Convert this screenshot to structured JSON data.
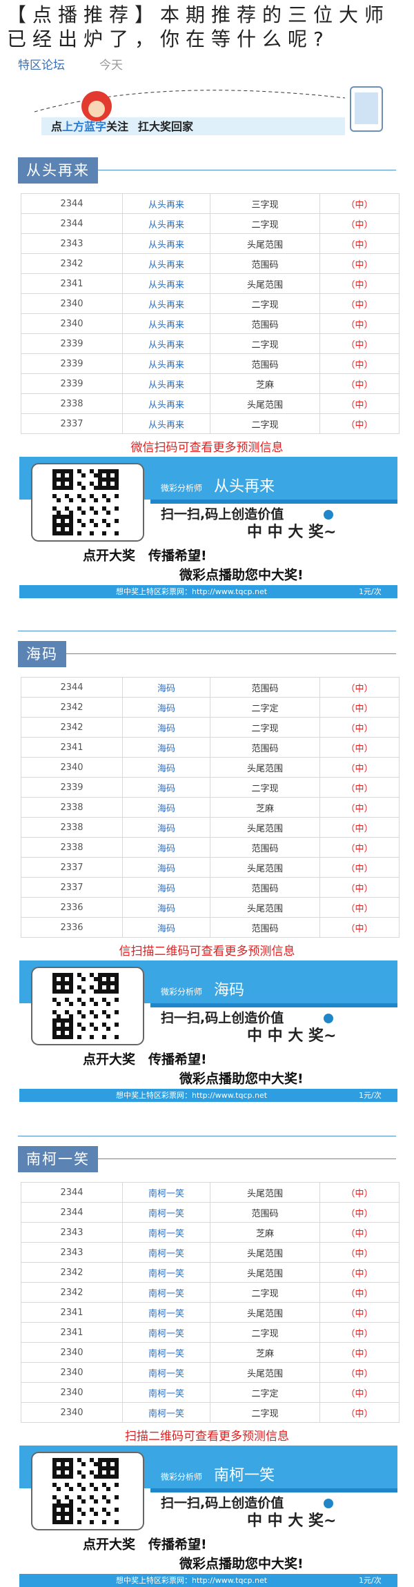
{
  "header": {
    "title": "【点播推荐】本期推荐的三位大师已经出炉了，你在等什么呢?",
    "source": "特区论坛",
    "time": "今天"
  },
  "top_banner": {
    "parts": [
      "点",
      "上方蓝字",
      "关注",
      "扛大奖回家"
    ]
  },
  "sections": [
    {
      "title": "从头再来",
      "rows": [
        [
          "2344",
          "从头再来",
          "三字现",
          "（中）"
        ],
        [
          "2344",
          "从头再来",
          "二字现",
          "（中）"
        ],
        [
          "2343",
          "从头再来",
          "头尾范围",
          "（中）"
        ],
        [
          "2342",
          "从头再来",
          "范围码",
          "（中）"
        ],
        [
          "2341",
          "从头再来",
          "头尾范围",
          "（中）"
        ],
        [
          "2340",
          "从头再来",
          "二字现",
          "（中）"
        ],
        [
          "2340",
          "从头再来",
          "范围码",
          "（中）"
        ],
        [
          "2339",
          "从头再来",
          "二字现",
          "（中）"
        ],
        [
          "2339",
          "从头再来",
          "范围码",
          "（中）"
        ],
        [
          "2339",
          "从头再来",
          "芝麻",
          "（中）"
        ],
        [
          "2338",
          "从头再来",
          "头尾范围",
          "（中）"
        ],
        [
          "2337",
          "从头再来",
          "二字现",
          "（中）"
        ]
      ],
      "note": "微信扫码可查看更多预测信息",
      "banner": {
        "analyst": "微彩分析师",
        "name": "从头再来",
        "slogan": "扫一扫,码上创造价值",
        "win": "中 中 大 奖~",
        "line1": "点开大奖　传播希望!",
        "line2": "微彩点播助您中大奖!",
        "footer": "想中奖上特区彩票网：http://www.tqcp.net",
        "price": "1元/次"
      }
    },
    {
      "title": "海码",
      "rows": [
        [
          "2344",
          "海码",
          "范围码",
          "（中）"
        ],
        [
          "2342",
          "海码",
          "二字定",
          "（中）"
        ],
        [
          "2342",
          "海码",
          "二字现",
          "（中）"
        ],
        [
          "2341",
          "海码",
          "范围码",
          "（中）"
        ],
        [
          "2340",
          "海码",
          "头尾范围",
          "（中）"
        ],
        [
          "2339",
          "海码",
          "二字现",
          "（中）"
        ],
        [
          "2338",
          "海码",
          "芝麻",
          "（中）"
        ],
        [
          "2338",
          "海码",
          "头尾范围",
          "（中）"
        ],
        [
          "2338",
          "海码",
          "范围码",
          "（中）"
        ],
        [
          "2337",
          "海码",
          "头尾范围",
          "（中）"
        ],
        [
          "2337",
          "海码",
          "范围码",
          "（中）"
        ],
        [
          "2336",
          "海码",
          "头尾范围",
          "（中）"
        ],
        [
          "2336",
          "海码",
          "范围码",
          "（中）"
        ]
      ],
      "note": "信扫描二维码可查看更多预测信息",
      "banner": {
        "analyst": "微彩分析师",
        "name": "海码",
        "slogan": "扫一扫,码上创造价值",
        "win": "中 中 大 奖~",
        "line1": "点开大奖　传播希望!",
        "line2": "微彩点播助您中大奖!",
        "footer": "想中奖上特区彩票网：http://www.tqcp.net",
        "price": "1元/次"
      }
    },
    {
      "title": "南柯一笑",
      "rows": [
        [
          "2344",
          "南柯一笑",
          "头尾范围",
          "（中）"
        ],
        [
          "2344",
          "南柯一笑",
          "范围码",
          "（中）"
        ],
        [
          "2343",
          "南柯一笑",
          "芝麻",
          "（中）"
        ],
        [
          "2343",
          "南柯一笑",
          "头尾范围",
          "（中）"
        ],
        [
          "2342",
          "南柯一笑",
          "头尾范围",
          "（中）"
        ],
        [
          "2342",
          "南柯一笑",
          "二字现",
          "（中）"
        ],
        [
          "2341",
          "南柯一笑",
          "头尾范围",
          "（中）"
        ],
        [
          "2341",
          "南柯一笑",
          "二字现",
          "（中）"
        ],
        [
          "2340",
          "南柯一笑",
          "芝麻",
          "（中）"
        ],
        [
          "2340",
          "南柯一笑",
          "头尾范围",
          "（中）"
        ],
        [
          "2340",
          "南柯一笑",
          "二字定",
          "（中）"
        ],
        [
          "2340",
          "南柯一笑",
          "二字现",
          "（中）"
        ]
      ],
      "note": "扫描二维码可查看更多预测信息",
      "banner": {
        "analyst": "微彩分析师",
        "name": "南柯一笑",
        "slogan": "扫一扫,码上创造价值",
        "win": "中 中 大 奖~",
        "line1": "点开大奖　传播希望!",
        "line2": "微彩点播助您中大奖!",
        "footer": "想中奖上特区彩票网：http://www.tqcp.net",
        "price": "1元/次"
      }
    }
  ]
}
